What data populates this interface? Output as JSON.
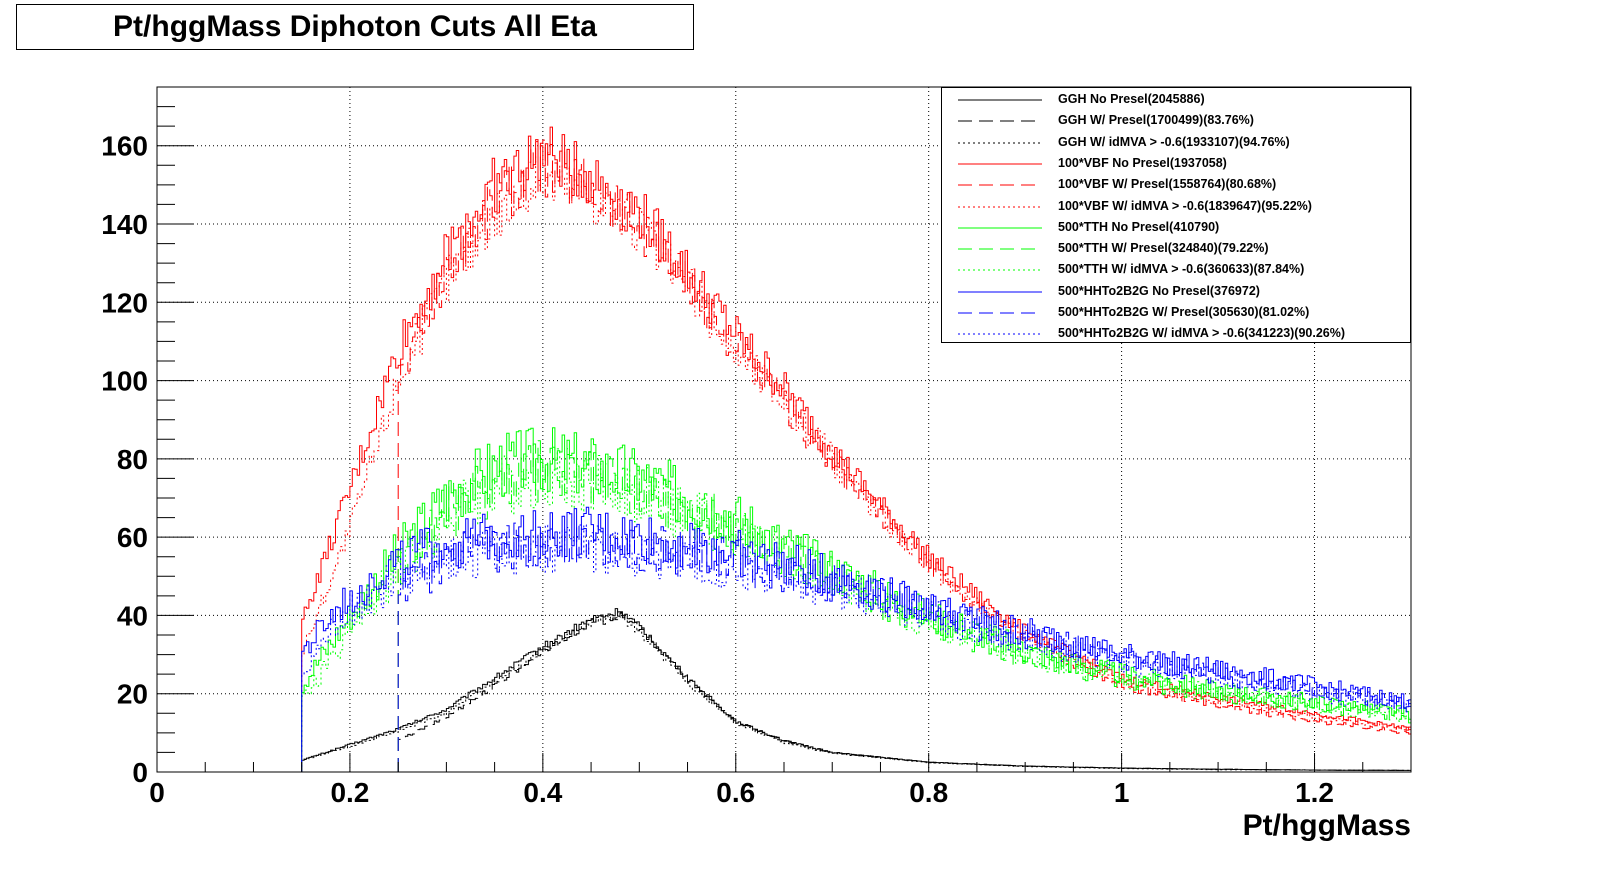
{
  "chart_data": {
    "type": "line",
    "title": "Pt/hggMass Diphoton Cuts All Eta",
    "xlabel": "Pt/hggMass",
    "ylabel": "",
    "xlim": [
      0,
      1.3
    ],
    "ylim": [
      0,
      175
    ],
    "x_ticks": [
      "0",
      "0.2",
      "0.4",
      "0.6",
      "0.8",
      "1",
      "1.2"
    ],
    "y_ticks": [
      "0",
      "20",
      "40",
      "60",
      "80",
      "100",
      "120",
      "140",
      "160"
    ],
    "grid": true,
    "legend_position": "top-right",
    "series": [
      {
        "name": "GGH No Presel(2045886)",
        "color": "#000000",
        "style": "solid",
        "x": [
          0.15,
          0.2,
          0.25,
          0.3,
          0.35,
          0.4,
          0.45,
          0.48,
          0.5,
          0.55,
          0.6,
          0.65,
          0.7,
          0.8,
          0.9,
          1.0,
          1.1,
          1.2,
          1.3
        ],
        "y": [
          3,
          7,
          11,
          16,
          24,
          32,
          39,
          41,
          37,
          24,
          13,
          8,
          5,
          2.5,
          1.5,
          1,
          0.7,
          0.5,
          0.4
        ]
      },
      {
        "name": "GGH W/ Presel(1700499)(83.76%)",
        "color": "#000000",
        "style": "dashed",
        "x": [
          0.25,
          0.3,
          0.35,
          0.4,
          0.45,
          0.48,
          0.5,
          0.55,
          0.6,
          0.65,
          0.7,
          0.8,
          0.9,
          1.0,
          1.1,
          1.2,
          1.3
        ],
        "y": [
          8,
          14,
          22,
          31,
          38,
          40,
          37,
          24,
          13,
          8,
          5,
          2.5,
          1.5,
          1,
          0.7,
          0.5,
          0.4
        ]
      },
      {
        "name": "GGH W/ idMVA > -0.6(1933107)(94.76%)",
        "color": "#000000",
        "style": "dotted",
        "x": [
          0.15,
          0.2,
          0.25,
          0.3,
          0.35,
          0.4,
          0.45,
          0.48,
          0.5,
          0.55,
          0.6,
          0.65,
          0.7,
          0.8,
          0.9,
          1.0,
          1.1,
          1.2,
          1.3
        ],
        "y": [
          3,
          6.5,
          10.5,
          15,
          23,
          31,
          38,
          40,
          36,
          23,
          12.5,
          7.5,
          4.8,
          2.4,
          1.4,
          0.9,
          0.6,
          0.5,
          0.4
        ]
      },
      {
        "name": "100*VBF No Presel(1937058)",
        "color": "#ff0000",
        "style": "solid",
        "x": [
          0.15,
          0.2,
          0.25,
          0.3,
          0.35,
          0.4,
          0.45,
          0.5,
          0.55,
          0.6,
          0.65,
          0.7,
          0.75,
          0.8,
          0.85,
          0.9,
          0.95,
          1.0,
          1.1,
          1.2,
          1.3
        ],
        "y": [
          38,
          72,
          108,
          132,
          150,
          158,
          152,
          143,
          128,
          112,
          98,
          82,
          68,
          55,
          45,
          36,
          30,
          24,
          19,
          15,
          11
        ]
      },
      {
        "name": "100*VBF W/ Presel(1558764)(80.68%)",
        "color": "#ff0000",
        "style": "dashed",
        "x": [
          0.25,
          0.3,
          0.35,
          0.4,
          0.45,
          0.5,
          0.55,
          0.6,
          0.65,
          0.7,
          0.75,
          0.8,
          0.85,
          0.9,
          0.95,
          1.0,
          1.1,
          1.2,
          1.3
        ],
        "y": [
          100,
          128,
          146,
          155,
          150,
          140,
          125,
          108,
          94,
          79,
          66,
          53,
          43,
          35,
          28,
          22,
          17,
          13,
          10
        ]
      },
      {
        "name": "100*VBF W/ idMVA > -0.6(1839647)(95.22%)",
        "color": "#ff0000",
        "style": "dotted",
        "x": [
          0.15,
          0.2,
          0.25,
          0.3,
          0.35,
          0.4,
          0.45,
          0.5,
          0.55,
          0.6,
          0.65,
          0.7,
          0.75,
          0.8,
          0.85,
          0.9,
          0.95,
          1.0,
          1.1,
          1.2,
          1.3
        ],
        "y": [
          30,
          62,
          100,
          126,
          143,
          152,
          148,
          139,
          124,
          108,
          95,
          80,
          66,
          53,
          43,
          35,
          29,
          23,
          18,
          14,
          11
        ]
      },
      {
        "name": "500*TTH No Presel(410790)",
        "color": "#00ff00",
        "style": "solid",
        "x": [
          0.15,
          0.2,
          0.25,
          0.3,
          0.35,
          0.4,
          0.45,
          0.5,
          0.55,
          0.6,
          0.65,
          0.7,
          0.75,
          0.8,
          0.85,
          0.9,
          0.95,
          1.0,
          1.1,
          1.2,
          1.3
        ],
        "y": [
          22,
          40,
          56,
          70,
          78,
          80,
          78,
          75,
          70,
          65,
          58,
          52,
          46,
          40,
          36,
          31,
          28,
          25,
          21,
          18,
          15
        ]
      },
      {
        "name": "500*TTH W/ Presel(324840)(79.22%)",
        "color": "#00ff00",
        "style": "dashed",
        "x": [
          0.25,
          0.3,
          0.35,
          0.4,
          0.45,
          0.5,
          0.55,
          0.6,
          0.65,
          0.7,
          0.75,
          0.8,
          0.85,
          0.9,
          0.95,
          1.0,
          1.1,
          1.2,
          1.3
        ],
        "y": [
          52,
          66,
          74,
          77,
          75,
          72,
          67,
          62,
          56,
          50,
          44,
          39,
          34,
          30,
          27,
          24,
          20,
          17,
          14
        ]
      },
      {
        "name": "500*TTH W/ idMVA > -0.6(360633)(87.84%)",
        "color": "#00ff00",
        "style": "dotted",
        "x": [
          0.15,
          0.2,
          0.25,
          0.3,
          0.35,
          0.4,
          0.45,
          0.5,
          0.55,
          0.6,
          0.65,
          0.7,
          0.75,
          0.8,
          0.85,
          0.9,
          0.95,
          1.0,
          1.1,
          1.2,
          1.3
        ],
        "y": [
          18,
          36,
          52,
          65,
          73,
          76,
          74,
          71,
          66,
          61,
          55,
          49,
          43,
          38,
          34,
          30,
          27,
          24,
          20,
          17,
          14
        ]
      },
      {
        "name": "500*HHTo2B2G No Presel(376972)",
        "color": "#0000ff",
        "style": "solid",
        "x": [
          0.15,
          0.2,
          0.25,
          0.3,
          0.35,
          0.4,
          0.45,
          0.5,
          0.55,
          0.6,
          0.65,
          0.7,
          0.75,
          0.8,
          0.85,
          0.9,
          0.95,
          1.0,
          1.1,
          1.2,
          1.3
        ],
        "y": [
          30,
          45,
          54,
          58,
          60,
          61,
          61,
          60,
          58,
          56,
          53,
          50,
          46,
          42,
          39,
          36,
          33,
          30,
          26,
          22,
          18
        ]
      },
      {
        "name": "500*HHTo2B2G W/ Presel(305630)(81.02%)",
        "color": "#0000ff",
        "style": "dashed",
        "x": [
          0.25,
          0.3,
          0.35,
          0.4,
          0.45,
          0.5,
          0.55,
          0.6,
          0.65,
          0.7,
          0.75,
          0.8,
          0.85,
          0.9,
          0.95,
          1.0,
          1.1,
          1.2,
          1.3
        ],
        "y": [
          46,
          54,
          57,
          58,
          58,
          57,
          56,
          54,
          51,
          48,
          45,
          41,
          38,
          35,
          32,
          29,
          25,
          21,
          17
        ]
      },
      {
        "name": "500*HHTo2B2G W/ idMVA > -0.6(341223)(90.26%)",
        "color": "#0000ff",
        "style": "dotted",
        "x": [
          0.15,
          0.2,
          0.25,
          0.3,
          0.35,
          0.4,
          0.45,
          0.5,
          0.55,
          0.6,
          0.65,
          0.7,
          0.75,
          0.8,
          0.85,
          0.9,
          0.95,
          1.0,
          1.1,
          1.2,
          1.3
        ],
        "y": [
          26,
          41,
          50,
          54,
          56,
          57,
          57,
          56,
          54,
          52,
          50,
          47,
          44,
          40,
          37,
          34,
          31,
          28,
          24,
          20,
          17
        ]
      }
    ]
  }
}
